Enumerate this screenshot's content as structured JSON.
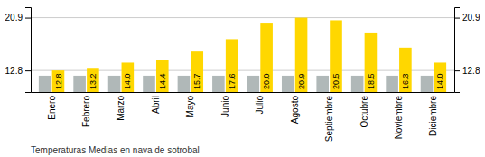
{
  "chart_data": {
    "type": "bar",
    "title": "Temperaturas Medias en nava de sotrobal",
    "categories": [
      "Enero",
      "Febrero",
      "Marzo",
      "Abril",
      "Mayo",
      "Junio",
      "Julio",
      "Agosto",
      "Septiembre",
      "Octubre",
      "Noviembre",
      "Diciembre"
    ],
    "series": [
      {
        "color": "#B0B8B8",
        "values": [
          12.0,
          12.0,
          12.0,
          12.0,
          12.0,
          12.0,
          12.0,
          12.0,
          12.0,
          12.0,
          12.0,
          12.0
        ]
      },
      {
        "color": "#FFD700",
        "values": [
          12.8,
          13.2,
          14.0,
          14.4,
          15.7,
          17.6,
          20.0,
          20.9,
          20.5,
          18.5,
          16.3,
          14.0
        ],
        "value_labels": [
          "12.8",
          "13.2",
          "14.0",
          "14.4",
          "15.7",
          "17.6",
          "20.0",
          "20.9",
          "20.5",
          "18.5",
          "16.3",
          "14.0"
        ],
        "data_labels": true
      }
    ],
    "ylim": [
      9.5,
      22.5
    ],
    "yticks": [
      12.8,
      20.9
    ],
    "y2lim": [
      9.5,
      22.5
    ],
    "y2ticks": [
      12.8,
      20.9
    ],
    "grid": true
  }
}
